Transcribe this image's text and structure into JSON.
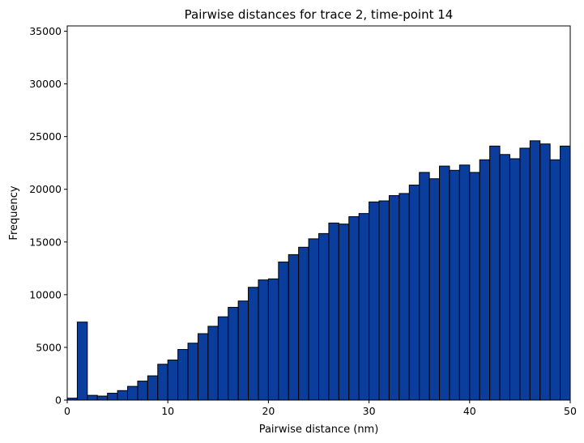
{
  "chart_data": {
    "type": "bar",
    "title": "Pairwise distances for trace 2, time-point 14",
    "xlabel": "Pairwise distance (nm)",
    "ylabel": "Frequency",
    "xlim": [
      0,
      50
    ],
    "ylim": [
      0,
      35500
    ],
    "xticks": [
      0,
      10,
      20,
      30,
      40,
      50
    ],
    "yticks": [
      0,
      5000,
      10000,
      15000,
      20000,
      25000,
      30000,
      35000
    ],
    "grid": false,
    "bar_color": "#0b3d9c",
    "edge_color": "#000000",
    "bin_width": 1,
    "bin_starts": [
      0,
      1,
      2,
      3,
      4,
      5,
      6,
      7,
      8,
      9,
      10,
      11,
      12,
      13,
      14,
      15,
      16,
      17,
      18,
      19,
      20,
      21,
      22,
      23,
      24,
      25,
      26,
      27,
      28,
      29,
      30,
      31,
      32,
      33,
      34,
      35,
      36,
      37,
      38,
      39,
      40,
      41,
      42,
      43,
      44,
      45,
      46,
      47,
      48,
      49
    ],
    "values": [
      180,
      7400,
      450,
      380,
      650,
      900,
      1300,
      1800,
      2300,
      3400,
      3800,
      4800,
      5400,
      6300,
      7000,
      7900,
      8800,
      9400,
      10700,
      11400,
      11500,
      13100,
      13800,
      14500,
      15300,
      15800,
      16800,
      16700,
      17400,
      17700,
      18800,
      18900,
      19400,
      19600,
      20400,
      21600,
      21000,
      22200,
      21800,
      22300,
      21600,
      22800,
      24100,
      23300,
      22900,
      23900,
      24600,
      24300,
      22800,
      24100
    ]
  }
}
